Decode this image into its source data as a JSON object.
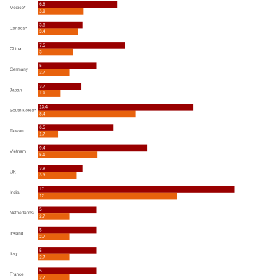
{
  "chart_data": {
    "type": "bar",
    "orientation": "horizontal",
    "categories": [
      "Mexico*",
      "Canada*",
      "China",
      "Germany",
      "Japan",
      "South Korea*",
      "Taiwan",
      "Vietnam",
      "UK",
      "India",
      "Netherlands",
      "Ireland",
      "Italy",
      "France"
    ],
    "series": [
      {
        "color": "#990000",
        "values": [
          6.8,
          3.8,
          7.5,
          5,
          3.7,
          13.4,
          6.5,
          9.4,
          3.8,
          17,
          5,
          5,
          5,
          5
        ],
        "labels": [
          "6.8",
          "3.8",
          "7.5",
          "5",
          "3.7",
          "13.4",
          "6.5",
          "9.4",
          "3.8",
          "17",
          "5",
          "5",
          "5",
          "5"
        ]
      },
      {
        "color": "#E8620D",
        "values": [
          3.9,
          3.4,
          3,
          2.7,
          1.9,
          8.4,
          1.7,
          5.1,
          3.3,
          12,
          2.7,
          2.7,
          2.7,
          2.7
        ],
        "labels": [
          "3.9",
          "3.4",
          "3",
          "2.7",
          "1.9",
          "8.4",
          "1.7",
          "5.1",
          "3.3",
          "12",
          "2.7",
          "2.7",
          "2.7",
          "2.7"
        ]
      }
    ],
    "xlim": [
      0,
      17
    ],
    "grid": false,
    "legend": "none"
  }
}
